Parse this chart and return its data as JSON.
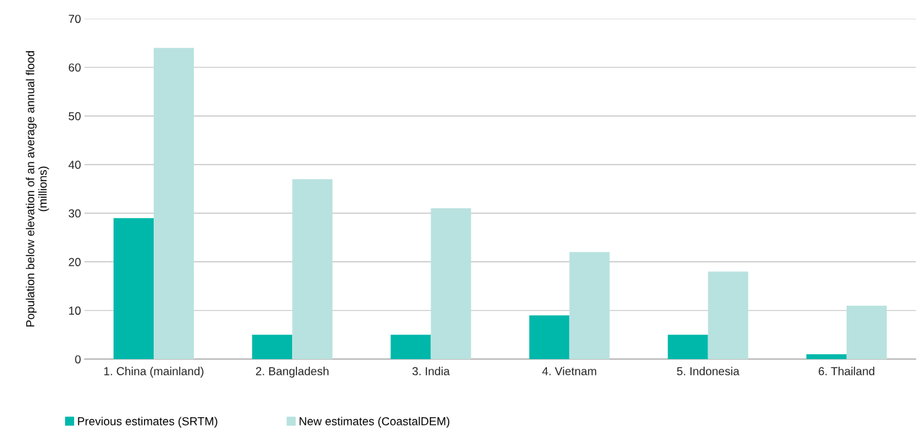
{
  "chart_data": {
    "type": "bar",
    "ylabel": "Population below elevation of an average annual flood\n(millions)",
    "categories": [
      "1. China (mainland)",
      "2. Bangladesh",
      "3. India",
      "4. Vietnam",
      "5. Indonesia",
      "6. Thailand"
    ],
    "series": [
      {
        "name": "Previous estimates (SRTM)",
        "color": "#00b8aa",
        "values": [
          29,
          5,
          5,
          9,
          5,
          1
        ]
      },
      {
        "name": "New estimates (CoastalDEM)",
        "color": "#b8e2df",
        "values": [
          64,
          37,
          31,
          22,
          18,
          11
        ]
      }
    ],
    "ylim": [
      0,
      70
    ],
    "yticks": [
      0,
      10,
      20,
      30,
      40,
      50,
      60,
      70
    ],
    "grid": "y",
    "legend": "bottom"
  }
}
